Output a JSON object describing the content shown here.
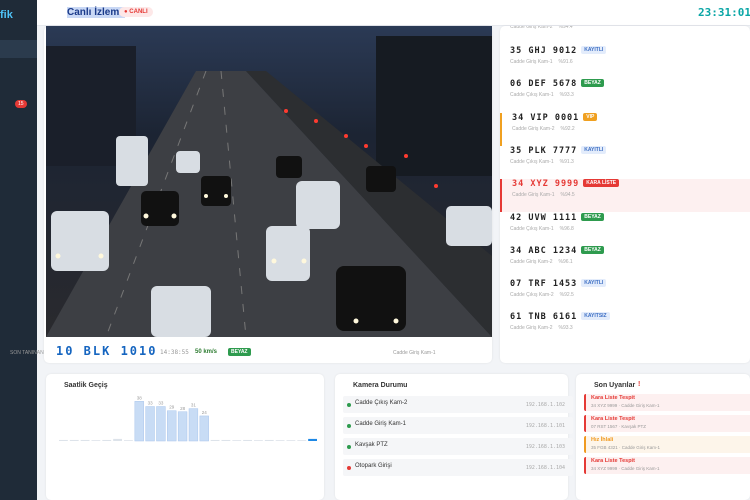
{
  "sidebar": {
    "brand": "fik",
    "badge": "15"
  },
  "topbar": {
    "title": "Canlı İzleme",
    "live": "● CANLI",
    "clock": "23:31:01"
  },
  "last_recognized": {
    "label": "SON TANINAN",
    "plate": "10 BLK 1010",
    "time": "14:38:55",
    "speed": "50 km/s",
    "tag": "BEYAZ",
    "camera": "Cadde Giriş Kam-1"
  },
  "detections": [
    {
      "camera": "Cadde Giriş Kam-2",
      "confidence": "%94.4"
    },
    {
      "plate": "35 GHJ 9012",
      "tag": "KAYITLI",
      "camera": "Cadde Giriş Kam-1",
      "confidence": "%91.6"
    },
    {
      "plate": "06 DEF 5678",
      "tag": "BEYAZ",
      "camera": "Cadde Çıkış Kam-1",
      "confidence": "%93.3"
    },
    {
      "plate": "34 VIP 0001",
      "tag": "VIP",
      "camera": "Cadde Giriş Kam-2",
      "confidence": "%92.2"
    },
    {
      "plate": "35 PLK 7777",
      "tag": "KAYITLI",
      "camera": "Cadde Çıkış Kam-1",
      "confidence": "%91.3"
    },
    {
      "plate": "34 XYZ 9999",
      "tag": "KARA LİSTE",
      "camera": "Cadde Giriş Kam-1",
      "confidence": "%94.5"
    },
    {
      "plate": "42 UVW 1111",
      "tag": "BEYAZ",
      "camera": "Cadde Çıkış Kam-1",
      "confidence": "%96.8"
    },
    {
      "plate": "34 ABC 1234",
      "tag": "BEYAZ",
      "camera": "Cadde Giriş Kam-2",
      "confidence": "%96.1"
    },
    {
      "plate": "07 TRF 1453",
      "tag": "KAYITLI",
      "camera": "Cadde Çıkış Kam-2",
      "confidence": "%92.5"
    },
    {
      "plate": "61 TNB 6161",
      "tag": "KAYITSIZ",
      "camera": "Cadde Giriş Kam-2",
      "confidence": "%93.3"
    }
  ],
  "hourly": {
    "title": "Saatlik Geçiş",
    "values": [
      1,
      1,
      1,
      0,
      1,
      2,
      0,
      38,
      33,
      33,
      29,
      28,
      31,
      24,
      1,
      1,
      0,
      1,
      0,
      1,
      0,
      0,
      0,
      2
    ],
    "max": 45
  },
  "cameras": {
    "title": "Kamera Durumu",
    "items": [
      {
        "name": "Cadde Çıkış Kam-2",
        "ip": "192.168.1.102",
        "status": "online"
      },
      {
        "name": "Cadde Giriş Kam-1",
        "ip": "192.168.1.101",
        "status": "online"
      },
      {
        "name": "Kavşak PTZ",
        "ip": "192.168.1.103",
        "status": "online"
      },
      {
        "name": "Otopark Girişi",
        "ip": "192.168.1.104",
        "status": "offline"
      }
    ]
  },
  "alerts": {
    "title": "Son Uyarılar",
    "icon": "!",
    "items": [
      {
        "title": "Kara Liste Tespit",
        "detail": "34 XYZ 9999 · Cadde Giriş Kam-1",
        "level": "danger"
      },
      {
        "title": "Kara Liste Tespit",
        "detail": "07 RST 1567 · Kavşak PTZ",
        "level": "danger"
      },
      {
        "title": "Hız İhlali",
        "detail": "35 FGB 4321 · Cadde Giriş Kam-1",
        "level": "warning"
      },
      {
        "title": "Kara Liste Tespit",
        "detail": "34 XYZ 9999 · Cadde Giriş Kam-1",
        "level": "danger"
      }
    ]
  }
}
